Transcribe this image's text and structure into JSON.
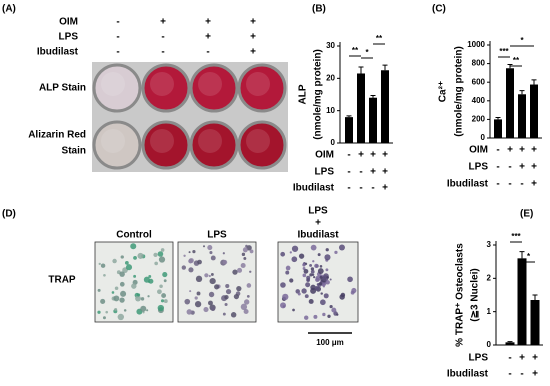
{
  "panel_a": {
    "label": "(A)",
    "conditions": [
      {
        "name": "OIM",
        "signs": [
          "-",
          "+",
          "+",
          "+"
        ]
      },
      {
        "name": "LPS",
        "signs": [
          "-",
          "-",
          "+",
          "+"
        ]
      },
      {
        "name": "Ibudilast",
        "signs": [
          "-",
          "-",
          "-",
          "+"
        ]
      }
    ],
    "row_labels": [
      [
        "ALP Stain"
      ],
      [
        "Alizarin Red",
        "Stain"
      ]
    ]
  },
  "panel_d": {
    "label": "(D)",
    "columns": [
      [
        "Control"
      ],
      [
        "LPS"
      ],
      [
        "LPS",
        "+",
        "Ibudilast"
      ]
    ],
    "row_label": "TRAP",
    "scale_bar": "100 μm"
  },
  "chart_data": [
    {
      "type": "bar",
      "panel": "(B)",
      "y_label": "ALP",
      "y_label_unit": "(nmole/mg protein)",
      "color": "#000000",
      "values": [
        8,
        21.5,
        14,
        22.5
      ],
      "errors": [
        0.4,
        2,
        0.7,
        1.6
      ],
      "ylim": [
        0,
        30
      ],
      "yticks": [
        0,
        10,
        20,
        30
      ],
      "conditions": [
        {
          "name": "OIM",
          "signs": [
            "-",
            "+",
            "+",
            "+"
          ]
        },
        {
          "name": "LPS",
          "signs": [
            "-",
            "-",
            "+",
            "+"
          ]
        },
        {
          "name": "Ibudilast",
          "signs": [
            "-",
            "-",
            "-",
            "+"
          ]
        }
      ],
      "significance": [
        "**",
        "*",
        "**"
      ]
    },
    {
      "type": "bar",
      "panel": "(C)",
      "y_label": "Ca²⁺",
      "y_label_unit": "(nmole/mg protein)",
      "color": "#000000",
      "values": [
        200,
        750,
        470,
        575
      ],
      "errors": [
        20,
        40,
        40,
        50
      ],
      "ylim": [
        0,
        1000
      ],
      "yticks": [
        0,
        200,
        400,
        600,
        800,
        1000
      ],
      "conditions": [
        {
          "name": "OIM",
          "signs": [
            "-",
            "+",
            "+",
            "+"
          ]
        },
        {
          "name": "LPS",
          "signs": [
            "-",
            "-",
            "+",
            "+"
          ]
        },
        {
          "name": "Ibudilast",
          "signs": [
            "-",
            "-",
            "-",
            "+"
          ]
        }
      ],
      "significance": [
        "***",
        "**",
        "*"
      ]
    },
    {
      "type": "bar",
      "panel": "(E)",
      "y_label": "% TRAP⁺ Osteoclasts",
      "y_label_unit": "(≧3 Nuclei)",
      "color": "#000000",
      "values": [
        0.08,
        2.6,
        1.35
      ],
      "errors": [
        0.02,
        0.2,
        0.15
      ],
      "ylim": [
        0,
        3
      ],
      "yticks": [
        0,
        1,
        2,
        3
      ],
      "conditions": [
        {
          "name": "LPS",
          "signs": [
            "-",
            "+",
            "+"
          ]
        },
        {
          "name": "Ibudilast",
          "signs": [
            "-",
            "-",
            "+"
          ]
        }
      ],
      "significance": [
        "***",
        "*"
      ]
    }
  ]
}
